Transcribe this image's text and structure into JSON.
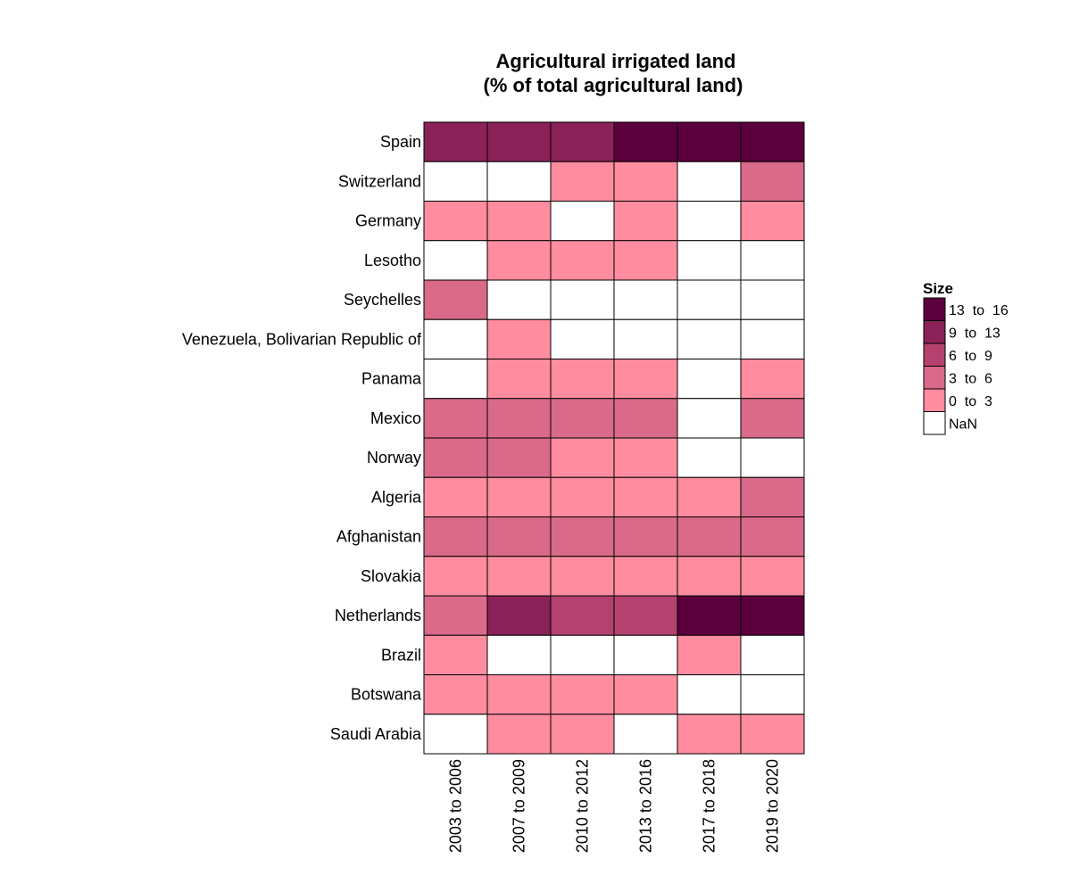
{
  "chart_data": {
    "type": "heatmap",
    "title": "Agricultural irrigated land",
    "subtitle": "(% of total agricultural land)",
    "rows": [
      "Spain",
      "Switzerland",
      "Germany",
      "Lesotho",
      "Seychelles",
      "Venezuela, Bolivarian Republic of",
      "Panama",
      "Mexico",
      "Norway",
      "Algeria",
      "Afghanistan",
      "Slovakia",
      "Netherlands",
      "Brazil",
      "Botswana",
      "Saudi Arabia"
    ],
    "columns": [
      "2003 to 2006",
      "2007 to 2009",
      "2010 to 2012",
      "2013 to 2016",
      "2017 to 2018",
      "2019 to 2020"
    ],
    "legend": {
      "title": "Size",
      "position": "right",
      "bins": [
        {
          "label": "13  to  16",
          "color": "#5c003d"
        },
        {
          "label": "9  to  13",
          "color": "#8a2258"
        },
        {
          "label": "6  to  9",
          "color": "#b5426e"
        },
        {
          "label": "3  to  6",
          "color": "#d96a89"
        },
        {
          "label": "0  to  3",
          "color": "#ff8c9f"
        }
      ],
      "nan": {
        "label": "NaN",
        "color": "#ffffff"
      }
    },
    "bin_index_values": [
      [
        1,
        1,
        1,
        0,
        0,
        0
      ],
      [
        null,
        null,
        4,
        4,
        null,
        3
      ],
      [
        4,
        4,
        null,
        4,
        null,
        4
      ],
      [
        null,
        4,
        4,
        4,
        null,
        null
      ],
      [
        3,
        null,
        null,
        null,
        null,
        null
      ],
      [
        null,
        4,
        null,
        null,
        null,
        null
      ],
      [
        null,
        4,
        4,
        4,
        null,
        4
      ],
      [
        3,
        3,
        3,
        3,
        null,
        3
      ],
      [
        3,
        3,
        4,
        4,
        null,
        null
      ],
      [
        4,
        4,
        4,
        4,
        4,
        3
      ],
      [
        3,
        3,
        3,
        3,
        3,
        3
      ],
      [
        4,
        4,
        4,
        4,
        4,
        4
      ],
      [
        3,
        1,
        2,
        2,
        0,
        0
      ],
      [
        4,
        null,
        null,
        null,
        4,
        null
      ],
      [
        4,
        4,
        4,
        4,
        null,
        null
      ],
      [
        null,
        4,
        4,
        null,
        4,
        4
      ]
    ]
  }
}
